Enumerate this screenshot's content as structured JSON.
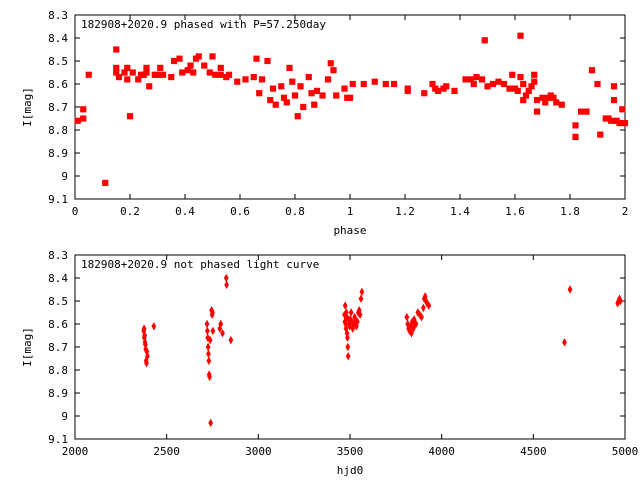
{
  "chart_data": [
    {
      "type": "scatter",
      "title": "182908+2020.9 phased with P=57.250day",
      "xlabel": "phase",
      "ylabel": "I[mag]",
      "xlim": [
        0,
        2
      ],
      "ylim": [
        8.3,
        9.1
      ],
      "y_inverted": true,
      "xticks": [
        0,
        0.2,
        0.4,
        0.6,
        0.8,
        1,
        1.2,
        1.4,
        1.6,
        1.8,
        2
      ],
      "xtick_labels": [
        "0",
        "0.2",
        "0.4",
        "0.6",
        "0.8",
        "1",
        "1.2",
        "1.4",
        "1.6",
        "1.8",
        "2"
      ],
      "yticks": [
        8.3,
        8.4,
        8.5,
        8.6,
        8.7,
        8.8,
        8.9,
        9.0,
        9.1
      ],
      "ytick_labels": [
        "8.3",
        "8.4",
        "8.5",
        "8.6",
        "8.7",
        "8.8",
        "8.9",
        "9",
        "9.1"
      ],
      "marker_color": "#ff0000",
      "grid": false,
      "points": [
        [
          0.01,
          8.76
        ],
        [
          0.03,
          8.75
        ],
        [
          0.03,
          8.71
        ],
        [
          0.05,
          8.56
        ],
        [
          0.11,
          9.03
        ],
        [
          0.15,
          8.45
        ],
        [
          0.15,
          8.53
        ],
        [
          0.15,
          8.55
        ],
        [
          0.16,
          8.57
        ],
        [
          0.18,
          8.55
        ],
        [
          0.19,
          8.53
        ],
        [
          0.19,
          8.58
        ],
        [
          0.2,
          8.74
        ],
        [
          0.21,
          8.55
        ],
        [
          0.23,
          8.58
        ],
        [
          0.24,
          8.56
        ],
        [
          0.25,
          8.56
        ],
        [
          0.26,
          8.55
        ],
        [
          0.26,
          8.53
        ],
        [
          0.27,
          8.61
        ],
        [
          0.29,
          8.56
        ],
        [
          0.3,
          8.56
        ],
        [
          0.31,
          8.53
        ],
        [
          0.32,
          8.56
        ],
        [
          0.35,
          8.57
        ],
        [
          0.36,
          8.5
        ],
        [
          0.38,
          8.49
        ],
        [
          0.39,
          8.55
        ],
        [
          0.41,
          8.54
        ],
        [
          0.42,
          8.52
        ],
        [
          0.43,
          8.55
        ],
        [
          0.44,
          8.49
        ],
        [
          0.45,
          8.48
        ],
        [
          0.47,
          8.52
        ],
        [
          0.49,
          8.55
        ],
        [
          0.5,
          8.48
        ],
        [
          0.51,
          8.56
        ],
        [
          0.53,
          8.53
        ],
        [
          0.53,
          8.56
        ],
        [
          0.55,
          8.57
        ],
        [
          0.56,
          8.56
        ],
        [
          0.59,
          8.59
        ],
        [
          0.62,
          8.58
        ],
        [
          0.65,
          8.57
        ],
        [
          0.66,
          8.49
        ],
        [
          0.67,
          8.64
        ],
        [
          0.68,
          8.58
        ],
        [
          0.7,
          8.5
        ],
        [
          0.71,
          8.67
        ],
        [
          0.72,
          8.62
        ],
        [
          0.73,
          8.69
        ],
        [
          0.75,
          8.61
        ],
        [
          0.76,
          8.66
        ],
        [
          0.77,
          8.68
        ],
        [
          0.78,
          8.53
        ],
        [
          0.79,
          8.59
        ],
        [
          0.8,
          8.65
        ],
        [
          0.81,
          8.74
        ],
        [
          0.82,
          8.61
        ],
        [
          0.83,
          8.7
        ],
        [
          0.85,
          8.57
        ],
        [
          0.86,
          8.64
        ],
        [
          0.87,
          8.69
        ],
        [
          0.88,
          8.63
        ],
        [
          0.9,
          8.65
        ],
        [
          0.92,
          8.58
        ],
        [
          0.93,
          8.51
        ],
        [
          0.94,
          8.54
        ],
        [
          0.95,
          8.65
        ],
        [
          0.98,
          8.62
        ],
        [
          0.99,
          8.66
        ],
        [
          1.0,
          8.66
        ],
        [
          1.01,
          8.6
        ],
        [
          1.05,
          8.6
        ],
        [
          1.09,
          8.59
        ],
        [
          1.13,
          8.6
        ],
        [
          1.16,
          8.6
        ],
        [
          1.21,
          8.62
        ],
        [
          1.21,
          8.63
        ],
        [
          1.27,
          8.64
        ],
        [
          1.3,
          8.6
        ],
        [
          1.31,
          8.62
        ],
        [
          1.32,
          8.63
        ],
        [
          1.34,
          8.62
        ],
        [
          1.35,
          8.61
        ],
        [
          1.38,
          8.63
        ],
        [
          1.42,
          8.58
        ],
        [
          1.44,
          8.58
        ],
        [
          1.45,
          8.6
        ],
        [
          1.46,
          8.57
        ],
        [
          1.48,
          8.58
        ],
        [
          1.49,
          8.41
        ],
        [
          1.5,
          8.61
        ],
        [
          1.52,
          8.6
        ],
        [
          1.54,
          8.59
        ],
        [
          1.56,
          8.6
        ],
        [
          1.58,
          8.62
        ],
        [
          1.59,
          8.56
        ],
        [
          1.6,
          8.62
        ],
        [
          1.61,
          8.63
        ],
        [
          1.62,
          8.39
        ],
        [
          1.62,
          8.57
        ],
        [
          1.63,
          8.67
        ],
        [
          1.63,
          8.6
        ],
        [
          1.64,
          8.65
        ],
        [
          1.65,
          8.63
        ],
        [
          1.66,
          8.61
        ],
        [
          1.67,
          8.59
        ],
        [
          1.67,
          8.56
        ],
        [
          1.68,
          8.72
        ],
        [
          1.68,
          8.67
        ],
        [
          1.7,
          8.66
        ],
        [
          1.71,
          8.68
        ],
        [
          1.72,
          8.66
        ],
        [
          1.73,
          8.65
        ],
        [
          1.74,
          8.66
        ],
        [
          1.75,
          8.68
        ],
        [
          1.77,
          8.69
        ],
        [
          1.82,
          8.78
        ],
        [
          1.82,
          8.83
        ],
        [
          1.84,
          8.72
        ],
        [
          1.86,
          8.72
        ],
        [
          1.88,
          8.54
        ],
        [
          1.9,
          8.6
        ],
        [
          1.91,
          8.82
        ],
        [
          1.93,
          8.75
        ],
        [
          1.94,
          8.75
        ],
        [
          1.95,
          8.76
        ],
        [
          1.96,
          8.67
        ],
        [
          1.96,
          8.61
        ],
        [
          1.97,
          8.76
        ],
        [
          1.98,
          8.77
        ],
        [
          1.99,
          8.71
        ],
        [
          2.0,
          8.77
        ]
      ]
    },
    {
      "type": "scatter",
      "title": "182908+2020.9 not phased light curve",
      "xlabel": "hjd0",
      "ylabel": "I[mag]",
      "xlim": [
        2000,
        5000
      ],
      "ylim": [
        8.3,
        9.1
      ],
      "y_inverted": true,
      "xticks": [
        2000,
        2500,
        3000,
        3500,
        4000,
        4500,
        5000
      ],
      "xtick_labels": [
        "2000",
        "2500",
        "3000",
        "3500",
        "4000",
        "4500",
        "5000"
      ],
      "yticks": [
        8.3,
        8.4,
        8.5,
        8.6,
        8.7,
        8.8,
        8.9,
        9.0,
        9.1
      ],
      "ytick_labels": [
        "8.3",
        "8.4",
        "8.5",
        "8.6",
        "8.7",
        "8.8",
        "8.9",
        "9",
        "9.1"
      ],
      "marker_color": "#ff0000",
      "grid": false,
      "points": [
        [
          2375,
          8.63
        ],
        [
          2377,
          8.62
        ],
        [
          2378,
          8.66
        ],
        [
          2380,
          8.65
        ],
        [
          2382,
          8.68
        ],
        [
          2384,
          8.69
        ],
        [
          2386,
          8.71
        ],
        [
          2388,
          8.76
        ],
        [
          2390,
          8.77
        ],
        [
          2392,
          8.72
        ],
        [
          2395,
          8.74
        ],
        [
          2430,
          8.61
        ],
        [
          2720,
          8.6
        ],
        [
          2722,
          8.63
        ],
        [
          2724,
          8.66
        ],
        [
          2726,
          8.7
        ],
        [
          2728,
          8.73
        ],
        [
          2730,
          8.76
        ],
        [
          2732,
          8.82
        ],
        [
          2734,
          8.83
        ],
        [
          2737,
          8.67
        ],
        [
          2740,
          9.03
        ],
        [
          2745,
          8.54
        ],
        [
          2748,
          8.56
        ],
        [
          2750,
          8.55
        ],
        [
          2752,
          8.63
        ],
        [
          2790,
          8.62
        ],
        [
          2795,
          8.6
        ],
        [
          2805,
          8.64
        ],
        [
          2825,
          8.4
        ],
        [
          2827,
          8.43
        ],
        [
          2850,
          8.67
        ],
        [
          3470,
          8.56
        ],
        [
          3472,
          8.59
        ],
        [
          3474,
          8.52
        ],
        [
          3476,
          8.6
        ],
        [
          3478,
          8.62
        ],
        [
          3480,
          8.55
        ],
        [
          3482,
          8.57
        ],
        [
          3484,
          8.64
        ],
        [
          3486,
          8.66
        ],
        [
          3488,
          8.7
        ],
        [
          3490,
          8.74
        ],
        [
          3492,
          8.58
        ],
        [
          3495,
          8.6
        ],
        [
          3498,
          8.61
        ],
        [
          3502,
          8.58
        ],
        [
          3506,
          8.55
        ],
        [
          3510,
          8.59
        ],
        [
          3515,
          8.62
        ],
        [
          3520,
          8.6
        ],
        [
          3525,
          8.57
        ],
        [
          3530,
          8.58
        ],
        [
          3535,
          8.61
        ],
        [
          3540,
          8.59
        ],
        [
          3545,
          8.55
        ],
        [
          3550,
          8.54
        ],
        [
          3555,
          8.56
        ],
        [
          3560,
          8.49
        ],
        [
          3565,
          8.46
        ],
        [
          3810,
          8.57
        ],
        [
          3815,
          8.6
        ],
        [
          3820,
          8.62
        ],
        [
          3825,
          8.63
        ],
        [
          3830,
          8.61
        ],
        [
          3835,
          8.64
        ],
        [
          3840,
          8.59
        ],
        [
          3845,
          8.62
        ],
        [
          3850,
          8.58
        ],
        [
          3855,
          8.6
        ],
        [
          3860,
          8.6
        ],
        [
          3870,
          8.55
        ],
        [
          3880,
          8.56
        ],
        [
          3890,
          8.57
        ],
        [
          3900,
          8.53
        ],
        [
          3905,
          8.49
        ],
        [
          3910,
          8.48
        ],
        [
          3915,
          8.5
        ],
        [
          3920,
          8.51
        ],
        [
          3930,
          8.52
        ],
        [
          4670,
          8.68
        ],
        [
          4700,
          8.45
        ],
        [
          4960,
          8.51
        ],
        [
          4965,
          8.5
        ],
        [
          4970,
          8.49
        ],
        [
          4975,
          8.5
        ]
      ]
    }
  ]
}
